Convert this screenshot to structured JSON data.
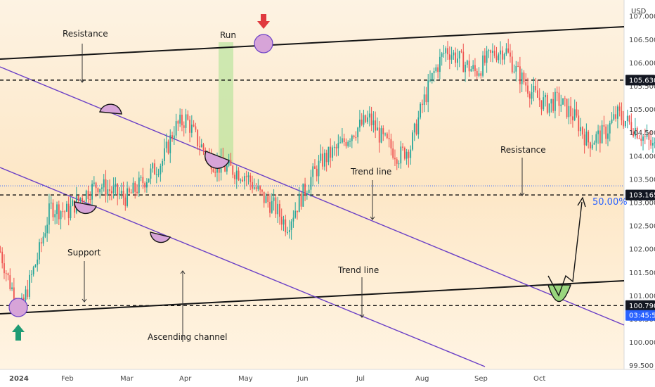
{
  "chart_data": {
    "type": "candlestick",
    "currency": "USD",
    "y_ticks": [
      "107.000",
      "106.500",
      "106.000",
      "105.500",
      "105.000",
      "104.500",
      "104.000",
      "103.500",
      "103.000",
      "102.500",
      "102.000",
      "101.500",
      "101.000",
      "100.500",
      "100.000",
      "99.500"
    ],
    "x_ticks": [
      "2024",
      "Feb",
      "Mar",
      "Apr",
      "May",
      "Jun",
      "Jul",
      "Aug",
      "Sep",
      "Oct"
    ],
    "ylim": [
      99.4,
      107.2
    ],
    "price_badges": [
      {
        "label": "105.630",
        "value": 105.63,
        "color": "#131722"
      },
      {
        "label": "103.165",
        "value": 103.165,
        "color": "#131722"
      },
      {
        "label": "100.790",
        "value": 100.79,
        "color": "#131722"
      },
      {
        "label": "03:45:53",
        "value": 100.58,
        "color": "#2962ff"
      }
    ],
    "current_price": 103.36,
    "fib_label": "50.00%",
    "annotations": {
      "resistance_top": "Resistance",
      "run": "Run",
      "resistance_right": "Resistance",
      "trend_line_1": "Trend line",
      "support": "Support",
      "trend_line_2": "Trend line",
      "ascending_channel": "Ascending channel"
    },
    "price_path": [
      [
        -0.3,
        102.6
      ],
      [
        0.0,
        101.3
      ],
      [
        0.2,
        100.7
      ],
      [
        0.5,
        101.9
      ],
      [
        0.7,
        102.9
      ],
      [
        1.0,
        102.8
      ],
      [
        1.2,
        103.1
      ],
      [
        1.5,
        103.4
      ],
      [
        1.8,
        103.2
      ],
      [
        2.0,
        103.1
      ],
      [
        2.3,
        103.5
      ],
      [
        2.6,
        103.9
      ],
      [
        2.8,
        104.6
      ],
      [
        3.0,
        104.8
      ],
      [
        3.2,
        104.3
      ],
      [
        3.5,
        103.8
      ],
      [
        3.8,
        103.7
      ],
      [
        4.0,
        103.6
      ],
      [
        4.3,
        103.1
      ],
      [
        4.5,
        102.9
      ],
      [
        4.7,
        102.5
      ],
      [
        4.9,
        103.0
      ],
      [
        5.1,
        103.5
      ],
      [
        5.3,
        103.9
      ],
      [
        5.6,
        104.2
      ],
      [
        5.8,
        104.5
      ],
      [
        6.1,
        104.8
      ],
      [
        6.3,
        104.4
      ],
      [
        6.6,
        104.0
      ],
      [
        6.8,
        104.2
      ],
      [
        7.0,
        105.1
      ],
      [
        7.2,
        105.8
      ],
      [
        7.4,
        106.3
      ],
      [
        7.6,
        106.1
      ],
      [
        7.9,
        105.8
      ],
      [
        8.2,
        106.2
      ],
      [
        8.4,
        106.3
      ],
      [
        8.6,
        105.8
      ],
      [
        8.9,
        105.3
      ],
      [
        9.1,
        105.1
      ],
      [
        9.3,
        105.2
      ],
      [
        9.6,
        104.8
      ],
      [
        9.8,
        104.3
      ],
      [
        10.1,
        104.5
      ],
      [
        10.3,
        104.9
      ],
      [
        10.6,
        104.6
      ],
      [
        10.9,
        104.2
      ],
      [
        11.1,
        104.1
      ],
      [
        11.4,
        104.7
      ],
      [
        11.6,
        105.3
      ],
      [
        11.9,
        105.6
      ],
      [
        12.1,
        105.8
      ],
      [
        12.4,
        105.9
      ],
      [
        12.6,
        105.7
      ],
      [
        12.9,
        105.3
      ],
      [
        13.1,
        105.0
      ],
      [
        13.4,
        104.3
      ],
      [
        13.6,
        104.1
      ],
      [
        13.9,
        104.2
      ],
      [
        14.1,
        104.0
      ],
      [
        14.4,
        103.8
      ],
      [
        14.6,
        104.3
      ],
      [
        14.9,
        104.4
      ],
      [
        15.1,
        104.2
      ],
      [
        15.4,
        103.7
      ],
      [
        15.6,
        103.3
      ],
      [
        15.8,
        102.8
      ],
      [
        16.0,
        103.2
      ],
      [
        16.2,
        103.4
      ],
      [
        16.4,
        103.3
      ],
      [
        16.6,
        102.7
      ],
      [
        16.8,
        102.2
      ],
      [
        17.0,
        101.7
      ],
      [
        17.2,
        101.3
      ],
      [
        17.4,
        101.0
      ],
      [
        17.6,
        101.3
      ],
      [
        17.9,
        101.0
      ],
      [
        18.1,
        101.3
      ],
      [
        18.4,
        101.6
      ],
      [
        18.6,
        101.3
      ],
      [
        18.8,
        101.7
      ],
      [
        19.0,
        101.4
      ],
      [
        19.2,
        101.0
      ],
      [
        19.4,
        100.8
      ],
      [
        19.6,
        101.2
      ]
    ]
  },
  "ui": {
    "currency_label": "USD"
  }
}
